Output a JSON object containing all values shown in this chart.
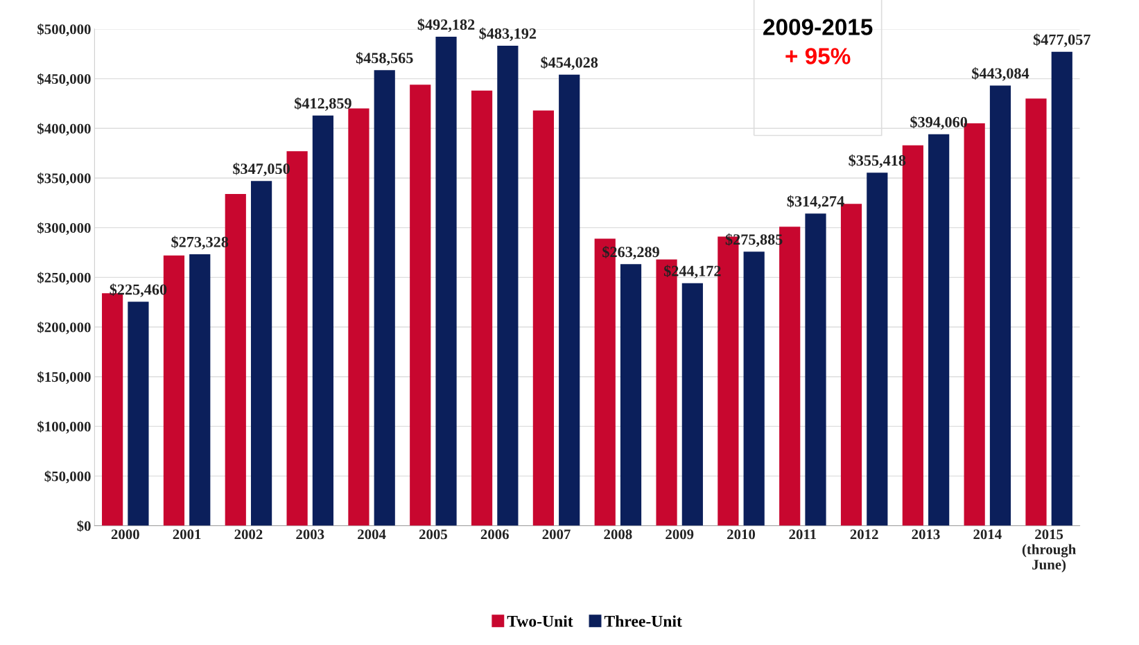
{
  "chart_data": {
    "type": "bar",
    "categories": [
      "2000",
      "2001",
      "2002",
      "2003",
      "2004",
      "2005",
      "2006",
      "2007",
      "2008",
      "2009",
      "2010",
      "2011",
      "2012",
      "2013",
      "2014",
      "2015\n(through\nJune)"
    ],
    "series": [
      {
        "name": "Two-Unit",
        "color": "#c8072f",
        "values": [
          234000,
          272000,
          334000,
          377000,
          420000,
          444000,
          438000,
          418000,
          289000,
          268000,
          291000,
          301000,
          324000,
          383000,
          405000,
          430000
        ]
      },
      {
        "name": "Three-Unit",
        "color": "#0b1f5b",
        "values": [
          225460,
          273328,
          347050,
          412859,
          458565,
          492182,
          483192,
          454028,
          263289,
          244172,
          275885,
          314274,
          355418,
          394060,
          443084,
          477057
        ],
        "value_labels": [
          "$225,460",
          "$273,328",
          "$347,050",
          "$412,859",
          "$458,565",
          "$492,182",
          "$483,192",
          "$454,028",
          "$263,289",
          "$244,172",
          "$275,885",
          "$314,274",
          "$355,418",
          "$394,060",
          "$443,084",
          "$477,057"
        ]
      }
    ],
    "ylim": [
      0,
      500000
    ],
    "yticks": [
      {
        "value": 0,
        "label": "$0"
      },
      {
        "value": 50000,
        "label": "$50,000"
      },
      {
        "value": 100000,
        "label": "$100,000"
      },
      {
        "value": 150000,
        "label": "$150,000"
      },
      {
        "value": 200000,
        "label": "$200,000"
      },
      {
        "value": 250000,
        "label": "$250,000"
      },
      {
        "value": 300000,
        "label": "$300,000"
      },
      {
        "value": 350000,
        "label": "$350,000"
      },
      {
        "value": 400000,
        "label": "$400,000"
      },
      {
        "value": 450000,
        "label": "$450,000"
      },
      {
        "value": 500000,
        "label": "$500,000"
      }
    ],
    "grid": "y",
    "legend": "bottom",
    "annotations": [
      "2009-2015",
      "+ 95%"
    ]
  }
}
